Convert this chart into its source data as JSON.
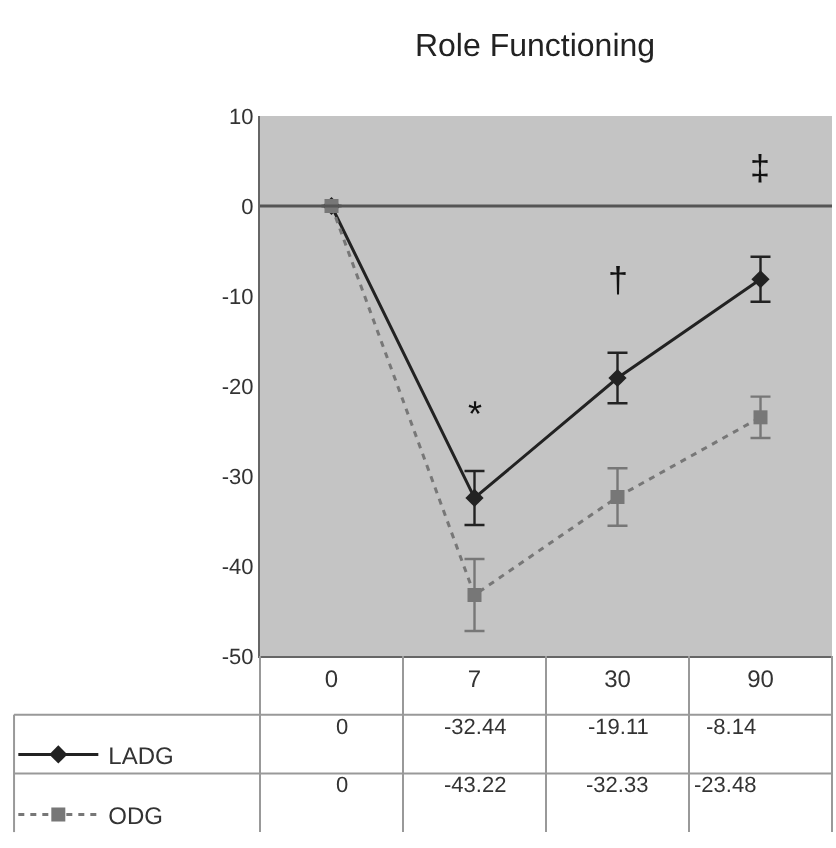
{
  "chart_data": {
    "type": "line",
    "title": "Role Functioning",
    "categories": [
      "0",
      "7",
      "30",
      "90"
    ],
    "series": [
      {
        "name": "LADG",
        "color": "#222222",
        "marker": "diamond",
        "line_style": "solid",
        "values": [
          0,
          -32.44,
          -19.11,
          -8.14
        ],
        "errors": [
          null,
          3,
          2.8,
          2.5
        ]
      },
      {
        "name": "ODG",
        "color": "#777777",
        "marker": "square",
        "line_style": "dotted",
        "values": [
          0,
          -43.22,
          -32.33,
          -23.48
        ],
        "errors": [
          null,
          4,
          3.2,
          2.3
        ]
      }
    ],
    "ylim": [
      -50,
      10
    ],
    "yticks": [
      -50,
      -40,
      -30,
      -20,
      -10,
      0,
      10
    ],
    "grid": false,
    "data_labels": true,
    "ref_lines": [
      {
        "axis": "y",
        "value": 0,
        "color": "#555555"
      }
    ],
    "legend": "bottom left",
    "annotations": [
      "*",
      "†",
      "‡"
    ]
  }
}
